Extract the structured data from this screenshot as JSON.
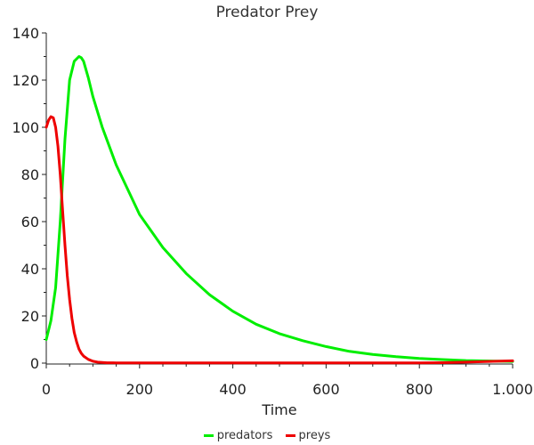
{
  "chart_data": {
    "type": "line",
    "title": "Predator Prey",
    "xlabel": "Time",
    "ylabel": "",
    "xlim": [
      0,
      1000
    ],
    "ylim": [
      0,
      140
    ],
    "x_ticks": [
      0,
      200,
      400,
      600,
      800,
      1000
    ],
    "x_tick_labels": [
      "0",
      "200",
      "400",
      "600",
      "800",
      "1.000"
    ],
    "y_ticks": [
      0,
      20,
      40,
      60,
      80,
      100,
      120,
      140
    ],
    "y_tick_labels": [
      "0",
      "20",
      "40",
      "60",
      "80",
      "100",
      "120",
      "140"
    ],
    "grid": false,
    "legend_position": "bottom",
    "series": [
      {
        "name": "predators",
        "color": "#00ee00",
        "x": [
          0,
          10,
          20,
          30,
          40,
          50,
          60,
          70,
          75,
          80,
          90,
          100,
          120,
          150,
          200,
          250,
          300,
          350,
          400,
          450,
          500,
          550,
          600,
          650,
          700,
          750,
          800,
          850,
          900,
          950,
          1000
        ],
        "y": [
          10,
          18,
          32,
          60,
          95,
          120,
          128,
          130,
          129.5,
          128,
          121,
          113,
          100,
          84,
          63,
          49,
          38,
          29,
          22,
          16.5,
          12.5,
          9.5,
          7,
          5,
          3.7,
          2.7,
          2,
          1.5,
          1.1,
          0.9,
          0.7
        ]
      },
      {
        "name": "preys",
        "color": "#ee0000",
        "x": [
          0,
          5,
          10,
          15,
          20,
          25,
          30,
          35,
          40,
          45,
          50,
          55,
          60,
          65,
          70,
          75,
          80,
          90,
          100,
          110,
          130,
          150,
          200,
          300,
          400,
          500,
          600,
          700,
          800,
          850,
          900,
          950,
          1000
        ],
        "y": [
          100,
          103,
          104.5,
          104,
          100,
          92,
          80,
          65,
          50,
          37,
          27,
          19,
          13,
          9,
          6,
          4.2,
          3,
          1.6,
          0.8,
          0.4,
          0.15,
          0.1,
          0.1,
          0.1,
          0.1,
          0.1,
          0.1,
          0.1,
          0.1,
          0.2,
          0.4,
          0.7,
          1
        ]
      }
    ]
  }
}
